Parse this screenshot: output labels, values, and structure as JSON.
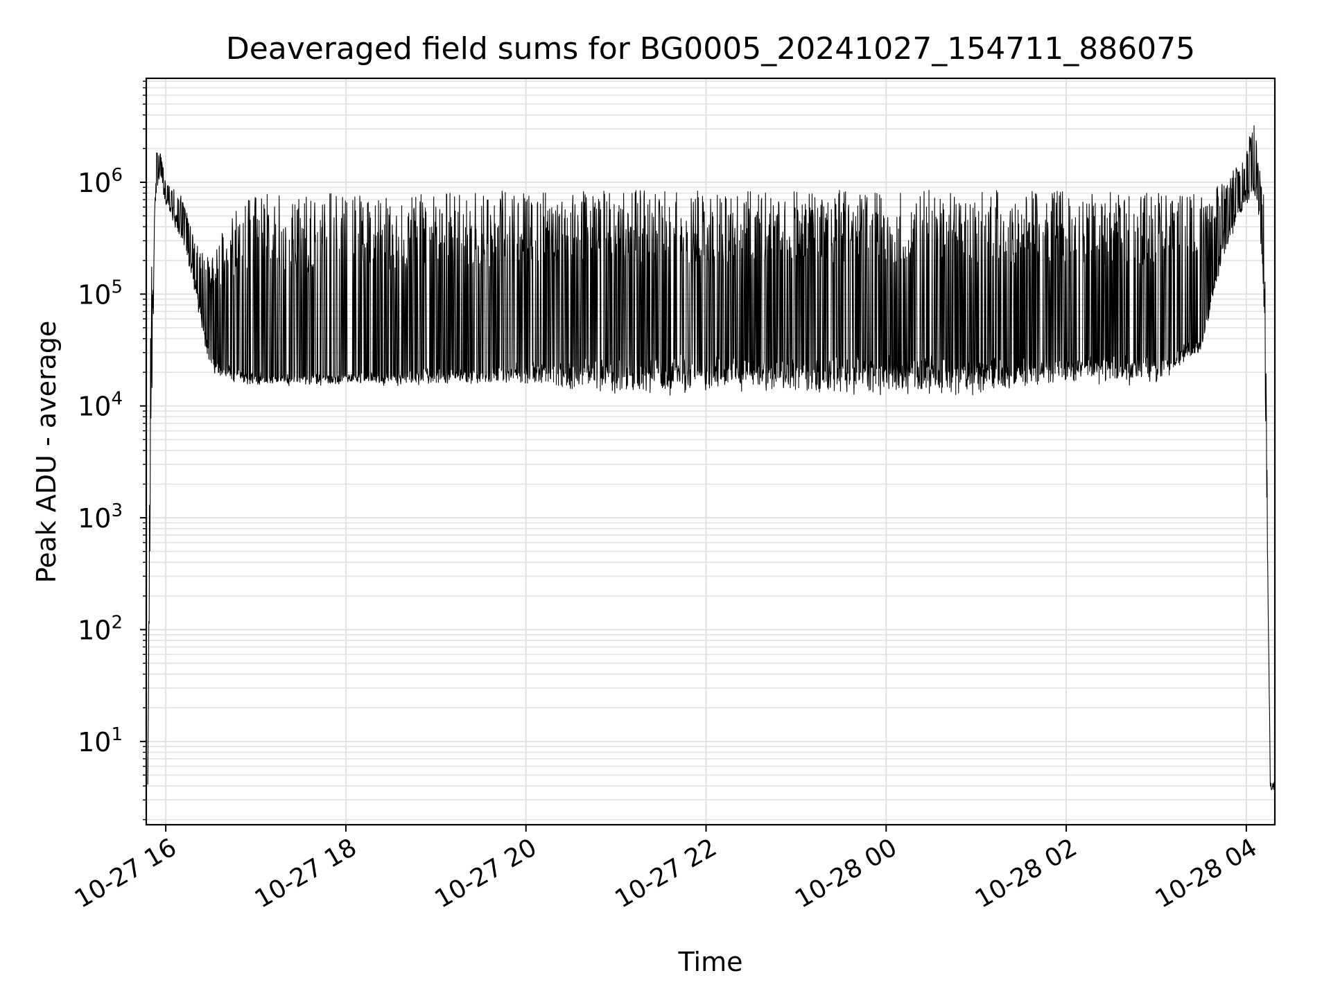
{
  "chart_data": {
    "type": "line",
    "title": "Deaveraged field sums for BG0005_20241027_154711_886075",
    "xlabel": "Time",
    "ylabel": "Peak ADU - average",
    "yscale": "log",
    "ylim": [
      1.8,
      8500000
    ],
    "xlim": [
      "2024-10-27 15:47",
      "2024-10-28 04:19"
    ],
    "grid": "major and minor, light gray",
    "line_color": "#000000",
    "x_ticks": [
      "10-27 16",
      "10-27 18",
      "10-27 20",
      "10-27 22",
      "10-28 00",
      "10-28 02",
      "10-28 04"
    ],
    "x_tick_times": [
      "2024-10-27 16:00",
      "2024-10-27 18:00",
      "2024-10-27 20:00",
      "2024-10-27 22:00",
      "2024-10-28 00:00",
      "2024-10-28 02:00",
      "2024-10-28 04:00"
    ],
    "y_ticks": [
      {
        "value": 10,
        "base": "10",
        "exp": "1"
      },
      {
        "value": 100,
        "base": "10",
        "exp": "2"
      },
      {
        "value": 1000,
        "base": "10",
        "exp": "3"
      },
      {
        "value": 10000,
        "base": "10",
        "exp": "4"
      },
      {
        "value": 100000,
        "base": "10",
        "exp": "5"
      },
      {
        "value": 1000000,
        "base": "10",
        "exp": "6"
      }
    ],
    "series": [
      {
        "color": "#000000",
        "x": [
          "2024-10-27 15:48",
          "2024-10-27 15:50",
          "2024-10-27 15:53",
          "2024-10-27 15:56",
          "2024-10-27 16:00",
          "2024-10-27 16:10",
          "2024-10-27 16:20",
          "2024-10-27 16:30",
          "2024-10-27 16:45",
          "2024-10-27 17:00",
          "2024-10-27 18:00",
          "2024-10-27 19:00",
          "2024-10-27 20:00",
          "2024-10-27 21:00",
          "2024-10-27 22:00",
          "2024-10-27 23:00",
          "2024-10-28 00:00",
          "2024-10-28 01:00",
          "2024-10-28 02:00",
          "2024-10-28 03:00",
          "2024-10-28 03:30",
          "2024-10-28 03:45",
          "2024-10-28 04:00",
          "2024-10-28 04:05",
          "2024-10-28 04:08",
          "2024-10-28 04:12",
          "2024-10-28 04:16",
          "2024-10-28 04:19"
        ],
        "envelope_low": [
          4,
          2000,
          600000,
          1000000,
          600000,
          300000,
          80000,
          20000,
          15000,
          15000,
          15000,
          15000,
          15000,
          12000,
          12000,
          12000,
          12000,
          12000,
          15000,
          15000,
          30000,
          200000,
          600000,
          800000,
          500000,
          50000,
          4,
          4
        ],
        "envelope_high": [
          4,
          100000,
          1800000,
          2000000,
          1000000,
          800000,
          300000,
          200000,
          700000,
          800000,
          800000,
          800000,
          850000,
          850000,
          850000,
          850000,
          850000,
          850000,
          850000,
          800000,
          800000,
          1000000,
          1800000,
          4200000,
          1500000,
          800000,
          4,
          4
        ],
        "baseline": [
          4,
          30000,
          1200000,
          1500000,
          800000,
          500000,
          150000,
          30000,
          22000,
          20000,
          20000,
          22000,
          25000,
          30000,
          30000,
          30000,
          30000,
          30000,
          30000,
          30000,
          40000,
          400000,
          900000,
          1200000,
          900000,
          200000,
          4,
          4
        ]
      }
    ]
  }
}
